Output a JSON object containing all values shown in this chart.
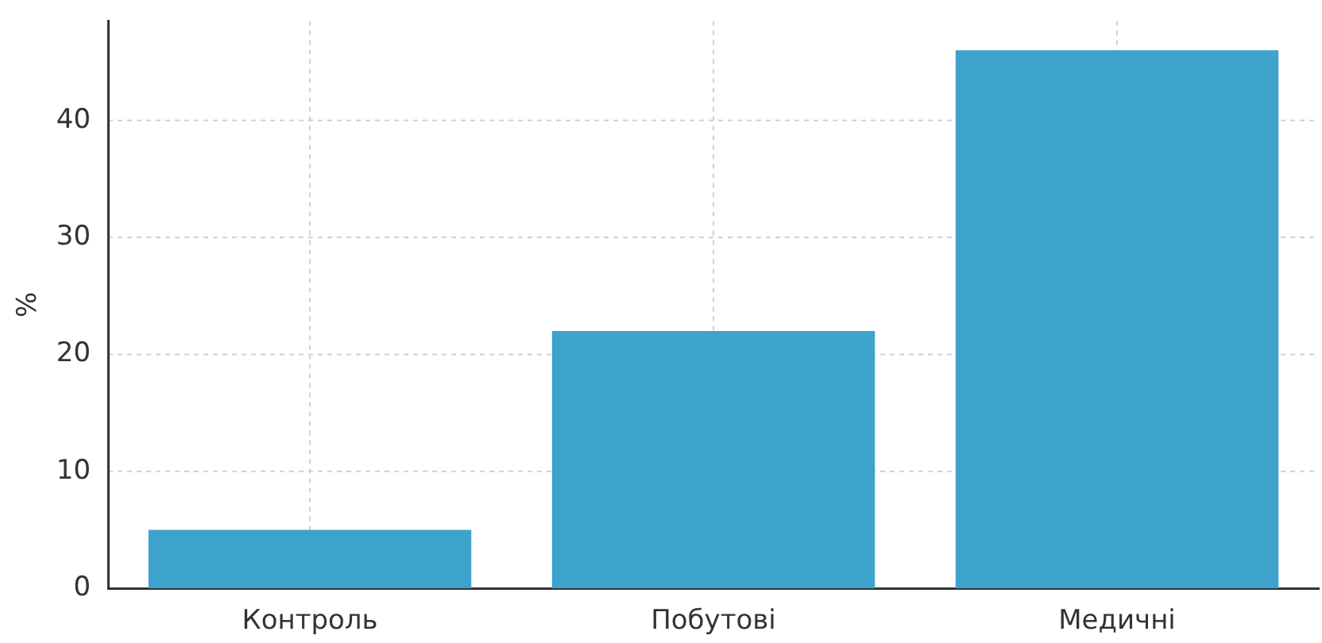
{
  "chart_data": {
    "type": "bar",
    "ylabel": "%",
    "categories": [
      "Контроль",
      "Побутові",
      "Медичні"
    ],
    "values": [
      5,
      22,
      46
    ],
    "color": "#3ea3cc",
    "ylim": [
      0,
      48.5
    ],
    "yticks": [
      0,
      10,
      20,
      30,
      40
    ],
    "grid": true
  }
}
